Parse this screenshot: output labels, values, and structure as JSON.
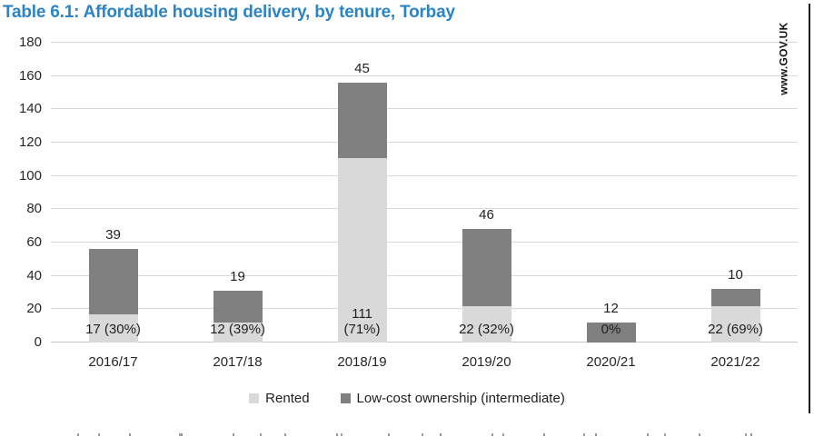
{
  "title": {
    "text": "Table 6.1: Affordable housing delivery, by tenure, Torbay",
    "color": "#2b84c6"
  },
  "watermark": {
    "text": "www.GOV.UK"
  },
  "colors": {
    "title_blue": "#2b84c6",
    "rented": "#d9d9d9",
    "low_cost_ownership": "#808080",
    "gridline": "#d9d9d9",
    "baseline": "#c6c6c6",
    "axis_text": "#262626"
  },
  "chart_data": {
    "type": "bar",
    "stacked": true,
    "title": "Table 6.1: Affordable housing delivery, by tenure, Torbay",
    "categories": [
      "2016/17",
      "2017/18",
      "2018/19",
      "2019/20",
      "2020/21",
      "2021/22"
    ],
    "series": [
      {
        "name": "Rented",
        "color": "#d9d9d9",
        "values": [
          17,
          12,
          111,
          22,
          0,
          22
        ],
        "labels": [
          "17 (30%)",
          "12 (39%)",
          "111\n(71%)",
          "22 (32%)",
          "0%",
          "22 (69%)"
        ]
      },
      {
        "name": "Low-cost ownership (intermediate)",
        "color": "#808080",
        "values": [
          39,
          19,
          45,
          46,
          12,
          10
        ],
        "labels": [
          "39",
          "19",
          "45",
          "46",
          "12",
          "10"
        ]
      }
    ],
    "totals": [
      56,
      31,
      156,
      68,
      12,
      32
    ],
    "xlabel": "",
    "ylabel": "",
    "ylim": [
      0,
      180
    ],
    "yticks": [
      0,
      20,
      40,
      60,
      80,
      100,
      120,
      140,
      160,
      180
    ],
    "grid": true,
    "legend_position": "bottom"
  }
}
